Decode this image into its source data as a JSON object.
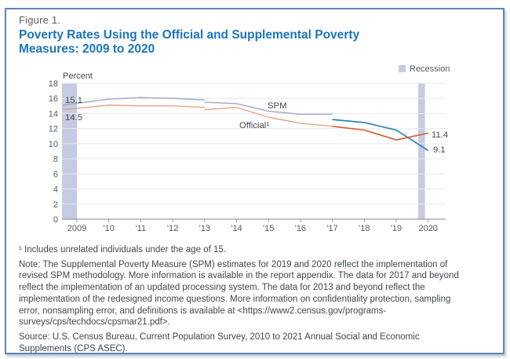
{
  "header": {
    "figure_label": "Figure 1.",
    "title": "Poverty Rates Using the Official and Supplemental Poverty Measures: 2009 to 2020"
  },
  "legend": {
    "recession_label": "Recession"
  },
  "chart_data": {
    "type": "line",
    "title": "Poverty Rates Using the Official and Supplemental Poverty Measures: 2009 to 2020",
    "xlabel": "",
    "ylabel": "Percent",
    "ylim": [
      0,
      18
    ],
    "ytick_step": 2,
    "grid": true,
    "x_years": [
      2009,
      2010,
      2011,
      2012,
      2013,
      2014,
      2015,
      2016,
      2017,
      2018,
      2019,
      2020
    ],
    "x_tick_labels": [
      "2009",
      "'10",
      "'11",
      "'12",
      "'13",
      "'14",
      "'15",
      "'16",
      "'17",
      "'18",
      "'19",
      "2020"
    ],
    "series": [
      {
        "name": "SPM",
        "segments": [
          {
            "years": [
              2009,
              2010,
              2011,
              2012,
              2013
            ],
            "values": [
              15.1,
              15.9,
              16.1,
              16.0,
              15.8
            ],
            "color": "#9da8c6"
          },
          {
            "years": [
              2013,
              2014,
              2015,
              2016,
              2017
            ],
            "values": [
              15.5,
              15.3,
              14.3,
              13.9,
              13.9
            ],
            "color": "#9da8c6"
          },
          {
            "years": [
              2017,
              2018,
              2019,
              2020
            ],
            "values": [
              13.2,
              12.8,
              11.8,
              9.1
            ],
            "color": "#2e82b5"
          }
        ]
      },
      {
        "name": "Official",
        "segments": [
          {
            "years": [
              2009,
              2010,
              2011,
              2012,
              2013
            ],
            "values": [
              14.5,
              15.1,
              15.0,
              15.0,
              14.8
            ],
            "color": "#e5a585"
          },
          {
            "years": [
              2013,
              2014,
              2015,
              2016,
              2017
            ],
            "values": [
              14.5,
              14.8,
              13.5,
              12.7,
              12.3
            ],
            "color": "#e5a585"
          },
          {
            "years": [
              2017,
              2018,
              2019,
              2020
            ],
            "values": [
              12.3,
              11.8,
              10.5,
              11.4
            ],
            "color": "#d0603c"
          }
        ]
      }
    ],
    "recession_bands": [
      {
        "from": 2008.5,
        "to": 2009.0
      },
      {
        "from": 2019.69,
        "to": 2019.9
      }
    ],
    "annotations": {
      "spm_start": "15.1",
      "official_start": "14.5",
      "spm_label": "SPM",
      "official_label": "Official¹",
      "official_end": "11.4",
      "spm_end": "9.1"
    },
    "colors": {
      "recession": "#c6cae3",
      "grid": "#e9eaee",
      "axis": "#7e8890",
      "tick": "#9aa2aa",
      "axis_text": "#55585c",
      "annotation_text": "#44474b",
      "title_blue": "#1c75bc"
    }
  },
  "notes": {
    "footnote": "¹ Includes unrelated individuals under the age of 15.",
    "note": "Note: The Supplemental Poverty Measure (SPM) estimates for 2019 and 2020 reflect the implementation of revised SPM methodology. More information is available in the report appendix. The data for 2017 and beyond reflect the implementation of an updated processing system. The data for 2013 and beyond reflect the implementation of the redesigned income questions. More information on confidentiality protection, sampling error, nonsampling error, and definitions is available at <https://www2.census.gov/programs-surveys/cps/techdocs/cpsmar21.pdf>.",
    "source": "Source: U.S. Census Bureau, Current Population Survey, 2010 to 2021 Annual Social and Economic Supplements (CPS ASEC)."
  }
}
